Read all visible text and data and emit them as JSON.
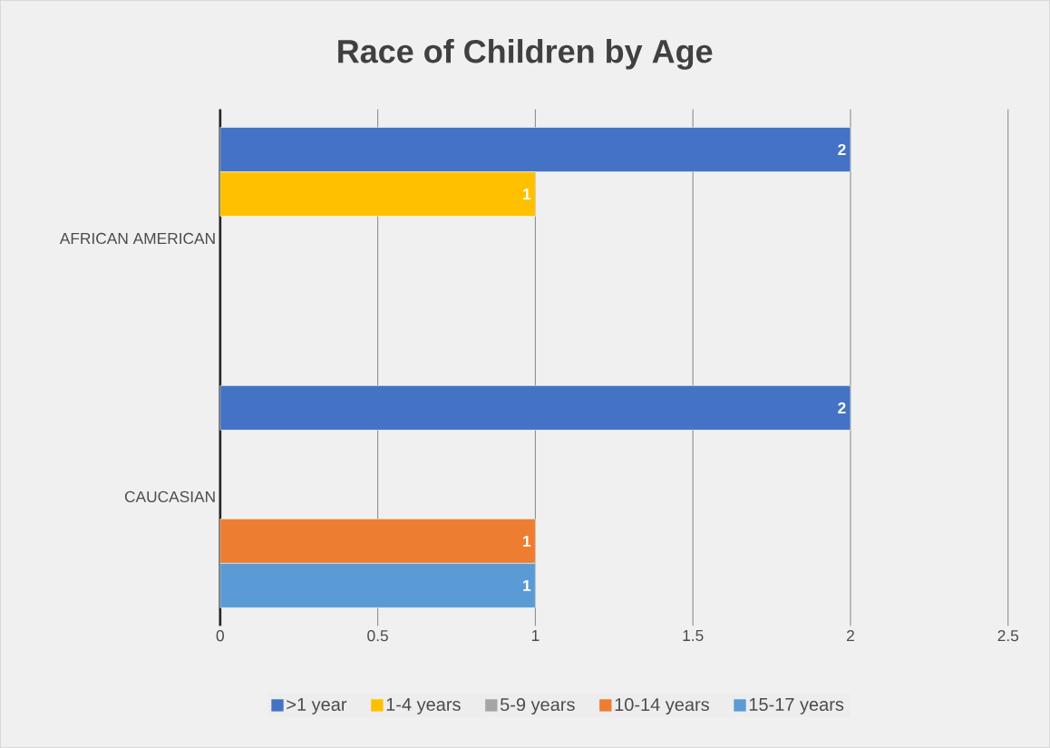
{
  "chart_data": {
    "type": "bar",
    "orientation": "horizontal",
    "title": "Race of Children by Age",
    "categories": [
      "AFRICAN AMERICAN",
      "CAUCASIAN"
    ],
    "series": [
      {
        "name": ">1 year",
        "color": "#4472c4",
        "values": [
          2,
          2
        ]
      },
      {
        "name": "1-4 years",
        "color": "#ffc000",
        "values": [
          1,
          null
        ]
      },
      {
        "name": "5-9 years",
        "color": "#a5a5a5",
        "values": [
          null,
          null
        ]
      },
      {
        "name": "10-14 years",
        "color": "#ed7d31",
        "values": [
          null,
          1
        ]
      },
      {
        "name": "15-17 years",
        "color": "#5b9bd5",
        "values": [
          null,
          1
        ]
      }
    ],
    "xlim": [
      0,
      2.5
    ],
    "xticks": [
      0,
      0.5,
      1,
      1.5,
      2,
      2.5
    ],
    "grid": "x",
    "legend": "bottom",
    "data_labels": true
  }
}
